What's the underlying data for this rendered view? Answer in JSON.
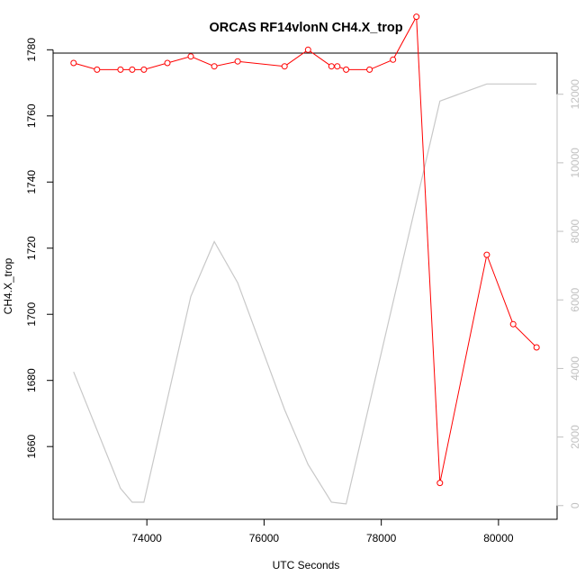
{
  "chart_data": {
    "type": "line",
    "title": "ORCAS RF14vlonN CH4.X_trop",
    "xlabel": "UTC Seconds",
    "ylabel": "CH4.X_trop",
    "xlim": [
      72400,
      81000
    ],
    "ylim": [
      1638,
      1779
    ],
    "y2lim": [
      -400,
      13200
    ],
    "x_ticks": [
      74000,
      76000,
      78000,
      80000
    ],
    "y_ticks": [
      1660,
      1680,
      1700,
      1720,
      1740,
      1760,
      1780
    ],
    "y2_ticks": [
      0,
      2000,
      4000,
      6000,
      8000,
      10000,
      12000
    ],
    "grid": false,
    "legend": "none",
    "colors": {
      "ch4": "#ff0000",
      "altitude": "#c8c8c8",
      "axes": "#000000",
      "right_axis": "#c0c0c0"
    },
    "series": [
      {
        "axis": "left",
        "style": "line+markers",
        "x": [
          72750,
          73150,
          73550,
          73750,
          73950,
          74350,
          74750,
          75150,
          75550,
          76350,
          76750,
          77150,
          77250,
          77400,
          77800,
          78200,
          78600,
          79000,
          79800,
          80250,
          80650
        ],
        "y": [
          1776,
          1774,
          1774,
          1774,
          1774,
          1776,
          1778,
          1775,
          1776.5,
          1775,
          1780,
          1775,
          1775,
          1774,
          1774,
          1777,
          1790,
          1649,
          1718,
          1697,
          1690
        ]
      },
      {
        "axis": "right",
        "style": "line",
        "x": [
          72750,
          73550,
          73750,
          73950,
          74750,
          75150,
          75550,
          76350,
          76750,
          77150,
          77400,
          79000,
          79800,
          80650
        ],
        "y": [
          3900,
          500,
          100,
          100,
          6100,
          7700,
          6500,
          2800,
          1200,
          100,
          50,
          11800,
          12300,
          12300
        ]
      }
    ]
  }
}
